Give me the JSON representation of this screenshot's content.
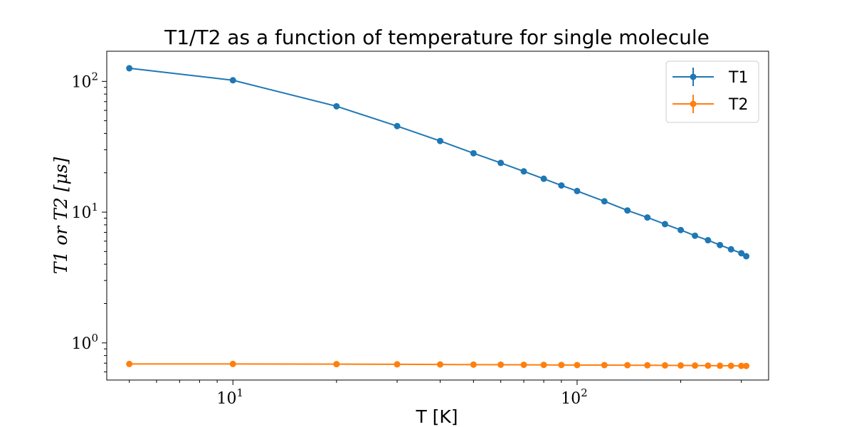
{
  "chart_data": {
    "type": "line",
    "title": "T1/T2 as a function of temperature for single molecule",
    "xlabel": "T [K]",
    "ylabel": "T1 or T2 [μs]",
    "xscale": "log",
    "yscale": "log",
    "xlim": [
      4.3,
      360
    ],
    "ylim": [
      0.52,
      170
    ],
    "x": [
      5,
      10,
      20,
      30,
      40,
      50,
      60,
      70,
      80,
      90,
      100,
      120,
      140,
      160,
      180,
      200,
      220,
      240,
      260,
      280,
      300,
      310
    ],
    "xticks": [
      {
        "value": 10,
        "base": "10",
        "exp": "1"
      },
      {
        "value": 100,
        "base": "10",
        "exp": "2"
      }
    ],
    "yticks": [
      {
        "value": 1,
        "base": "10",
        "exp": "0"
      },
      {
        "value": 10,
        "base": "10",
        "exp": "1"
      },
      {
        "value": 100,
        "base": "10",
        "exp": "2"
      }
    ],
    "grid": false,
    "legend_position": "top-right",
    "series": [
      {
        "name": "T1",
        "color": "#1f77b4",
        "values": [
          126,
          102,
          64.5,
          45.5,
          35.0,
          28.2,
          23.8,
          20.5,
          18.0,
          16.0,
          14.5,
          12.1,
          10.3,
          9.1,
          8.1,
          7.3,
          6.6,
          6.1,
          5.6,
          5.2,
          4.85,
          4.6
        ]
      },
      {
        "name": "T2",
        "color": "#ff7f0e",
        "values": [
          0.69,
          0.69,
          0.688,
          0.686,
          0.684,
          0.682,
          0.681,
          0.68,
          0.679,
          0.678,
          0.677,
          0.676,
          0.675,
          0.674,
          0.673,
          0.672,
          0.671,
          0.67,
          0.669,
          0.668,
          0.667,
          0.666
        ]
      }
    ]
  }
}
